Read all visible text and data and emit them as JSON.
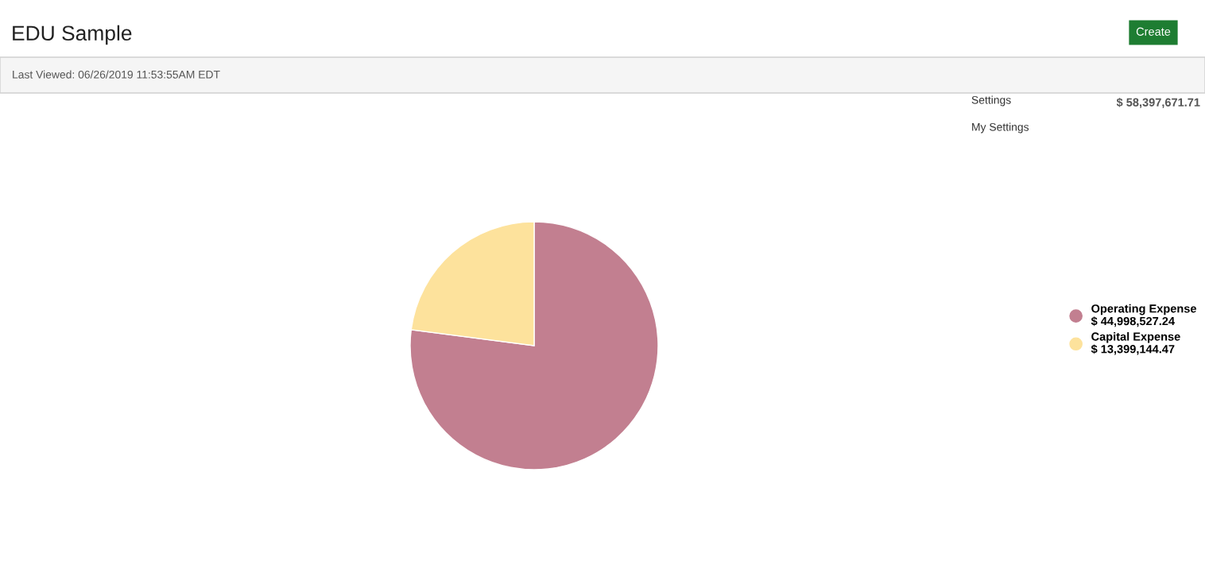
{
  "chart_data": {
    "type": "pie",
    "title": "EDU Sample",
    "categories": [
      "Operating Expense",
      "Capital Expense"
    ],
    "values": [
      44998527.24,
      13399144.47
    ],
    "colors": [
      "#c27f90",
      "#fde29c"
    ],
    "value_labels": [
      "$ 44,998,527.24",
      "$ 13,399,144.47"
    ],
    "legend": "right",
    "annotations": [
      "Last Viewed: 06/26/2019 11:53:55AM EDT",
      "$ 58,397,671.71",
      "Create",
      "Settings",
      "My Settings"
    ]
  }
}
